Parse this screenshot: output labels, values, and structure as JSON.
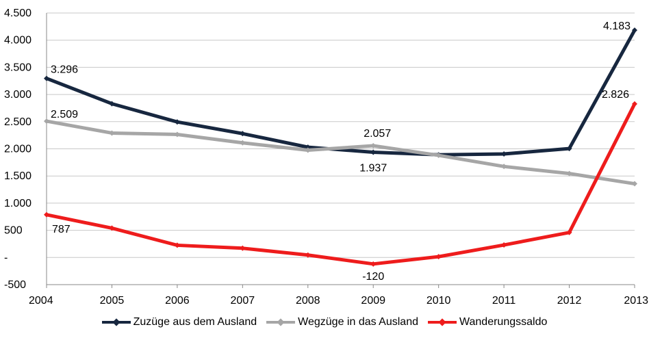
{
  "chart_data": {
    "type": "line",
    "title": "",
    "xlabel": "",
    "ylabel": "",
    "ylim": [
      -500,
      4500
    ],
    "y_ticks": [
      {
        "value": 4500,
        "label": "4.500"
      },
      {
        "value": 4000,
        "label": "4.000"
      },
      {
        "value": 3500,
        "label": "3.500"
      },
      {
        "value": 3000,
        "label": "3.000"
      },
      {
        "value": 2500,
        "label": "2.500"
      },
      {
        "value": 2000,
        "label": "2.000"
      },
      {
        "value": 1500,
        "label": "1.500"
      },
      {
        "value": 1000,
        "label": "1.000"
      },
      {
        "value": 500,
        "label": "500"
      },
      {
        "value": 0,
        "label": "-"
      },
      {
        "value": -500,
        "label": "-500"
      }
    ],
    "categories": [
      "2004",
      "2005",
      "2006",
      "2007",
      "2008",
      "2009",
      "2010",
      "2011",
      "2012",
      "2013"
    ],
    "grid": true,
    "legend_position": "bottom",
    "series": [
      {
        "name": "Zuzüge aus dem Ausland",
        "color": "#17273f",
        "values": [
          3296,
          2830,
          2495,
          2280,
          2030,
          1937,
          1890,
          1905,
          2005,
          4183
        ]
      },
      {
        "name": "Wegzüge in das Ausland",
        "color": "#a6a6a6",
        "values": [
          2509,
          2290,
          2265,
          2110,
          1975,
          2057,
          1880,
          1675,
          1545,
          1357
        ]
      },
      {
        "name": "Wanderungssaldo",
        "color": "#ee1c1c",
        "values": [
          787,
          540,
          225,
          170,
          45,
          -120,
          15,
          230,
          460,
          2826
        ]
      }
    ],
    "data_labels": [
      {
        "series": 0,
        "index": 0,
        "text": "3.296"
      },
      {
        "series": 0,
        "index": 5,
        "text": "1.937"
      },
      {
        "series": 0,
        "index": 9,
        "text": "4.183"
      },
      {
        "series": 1,
        "index": 0,
        "text": "2.509"
      },
      {
        "series": 1,
        "index": 5,
        "text": "2.057"
      },
      {
        "series": 2,
        "index": 0,
        "text": "787"
      },
      {
        "series": 2,
        "index": 5,
        "text": "-120"
      },
      {
        "series": 2,
        "index": 9,
        "text": "2.826"
      }
    ]
  }
}
